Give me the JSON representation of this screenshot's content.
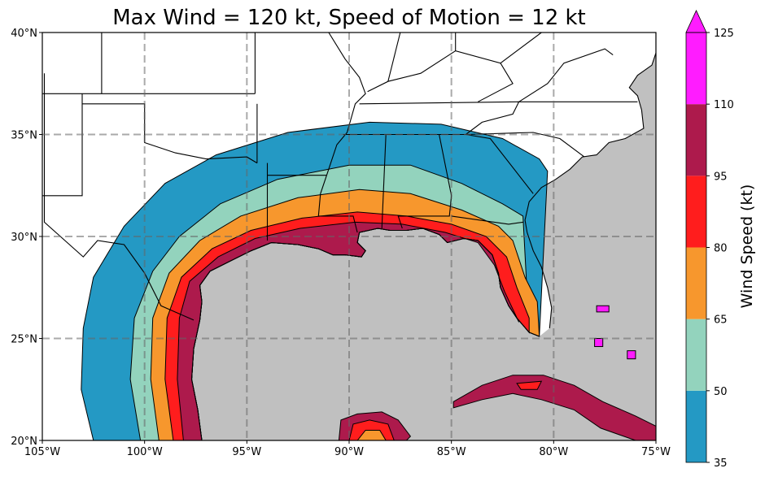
{
  "chart_data": {
    "type": "heatmap",
    "title": "Max Wind = 120 kt, Speed of Motion = 12 kt",
    "xlim": [
      -105,
      -75
    ],
    "ylim": [
      20,
      40
    ],
    "xticks": [
      {
        "value": -105,
        "label": "105°W"
      },
      {
        "value": -100,
        "label": "100°W"
      },
      {
        "value": -95,
        "label": "95°W"
      },
      {
        "value": -90,
        "label": "90°W"
      },
      {
        "value": -85,
        "label": "85°W"
      },
      {
        "value": -80,
        "label": "80°W"
      },
      {
        "value": -75,
        "label": "75°W"
      }
    ],
    "yticks": [
      {
        "value": 20,
        "label": "20°N"
      },
      {
        "value": 25,
        "label": "25°N"
      },
      {
        "value": 30,
        "label": "30°N"
      },
      {
        "value": 35,
        "label": "35°N"
      },
      {
        "value": 40,
        "label": "40°N"
      }
    ],
    "grid": true,
    "colorbar": {
      "label": "Wind Speed (kt)",
      "extend": "max",
      "levels": [
        {
          "min": 35,
          "max": 50,
          "color": "#2499c4"
        },
        {
          "min": 50,
          "max": 65,
          "color": "#93d3bd"
        },
        {
          "min": 65,
          "max": 80,
          "color": "#f7972d"
        },
        {
          "min": 80,
          "max": 95,
          "color": "#ff1d1d"
        },
        {
          "min": 95,
          "max": 110,
          "color": "#ad1a4c"
        },
        {
          "min": 110,
          "max": 125,
          "color": "#ff1cff"
        }
      ],
      "ticks": [
        "35",
        "50",
        "65",
        "80",
        "95",
        "110",
        "125"
      ]
    },
    "ocean_color": "#c0c0c0",
    "land_color": "#ffffff"
  }
}
